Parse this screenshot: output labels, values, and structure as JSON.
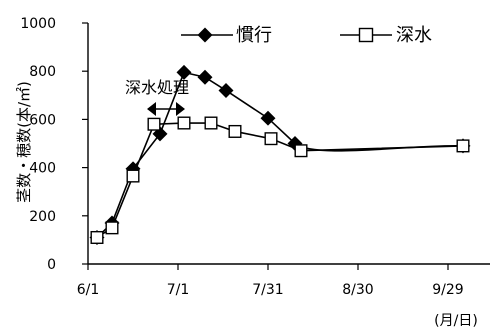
{
  "chart_data": {
    "type": "line",
    "title": "",
    "xlabel": "(月/日)",
    "ylabel": "茎数・穂数(本/㎡)",
    "x_ticks": [
      "6/1",
      "7/1",
      "7/31",
      "8/30",
      "9/29"
    ],
    "y_ticks": [
      "0",
      "200",
      "400",
      "600",
      "800",
      "1000"
    ],
    "ylim": [
      0,
      1000
    ],
    "grid": false,
    "legend": "top-right",
    "annotation": {
      "label": "深水処理",
      "start": "6/21",
      "end": "7/3"
    },
    "series": [
      {
        "name": "慣行",
        "marker": "diamond-filled",
        "x": [
          "6/4",
          "6/9",
          "6/16",
          "6/25",
          "7/3",
          "7/10",
          "7/17",
          "7/31",
          "8/9",
          "10/4"
        ],
        "values": [
          110,
          170,
          395,
          540,
          795,
          775,
          720,
          605,
          500,
          490
        ]
      },
      {
        "name": "深水",
        "marker": "square-open",
        "x": [
          "6/4",
          "6/9",
          "6/16",
          "6/23",
          "7/3",
          "7/12",
          "7/20",
          "8/1",
          "8/11",
          "10/4"
        ],
        "values": [
          110,
          150,
          365,
          580,
          585,
          585,
          550,
          520,
          470,
          490
        ]
      }
    ]
  }
}
